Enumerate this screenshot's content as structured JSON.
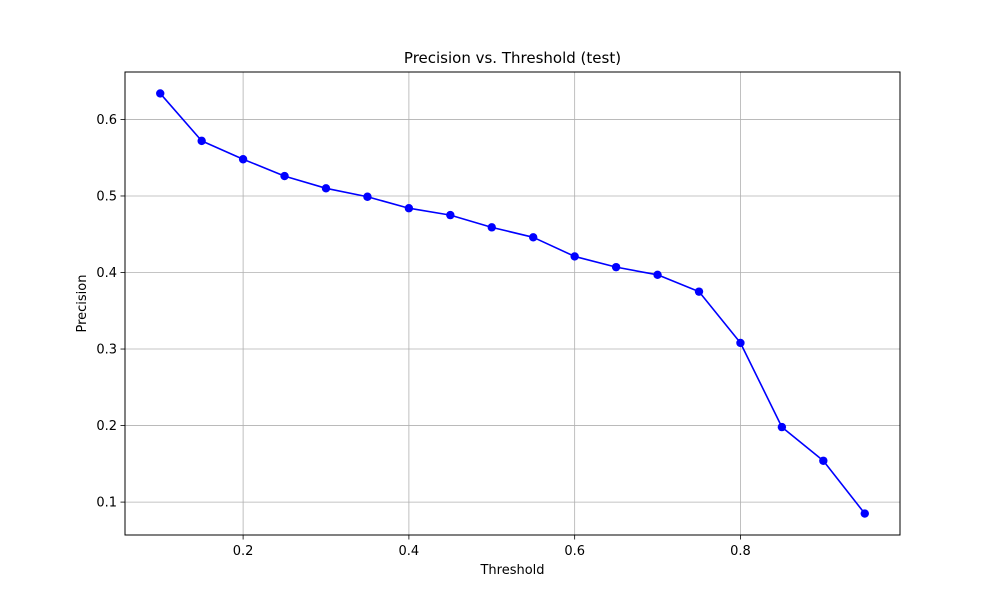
{
  "chart_data": {
    "type": "line",
    "title": "Precision vs. Threshold (test)",
    "xlabel": "Threshold",
    "ylabel": "Precision",
    "xlim": [
      0.0575,
      0.9925
    ],
    "ylim": [
      0.057,
      0.662
    ],
    "xticks": [
      0.2,
      0.4,
      0.6,
      0.8
    ],
    "yticks": [
      0.1,
      0.2,
      0.3,
      0.4,
      0.5,
      0.6
    ],
    "grid": true,
    "legend": false,
    "series": [
      {
        "color": "#0000ff",
        "marker": "circle",
        "x": [
          0.1,
          0.15,
          0.2,
          0.25,
          0.3,
          0.35,
          0.4,
          0.45,
          0.5,
          0.55,
          0.6,
          0.65,
          0.7,
          0.75,
          0.8,
          0.85,
          0.9,
          0.95
        ],
        "y": [
          0.634,
          0.572,
          0.548,
          0.526,
          0.51,
          0.499,
          0.484,
          0.475,
          0.459,
          0.446,
          0.421,
          0.407,
          0.397,
          0.375,
          0.308,
          0.198,
          0.154,
          0.085
        ]
      }
    ]
  }
}
